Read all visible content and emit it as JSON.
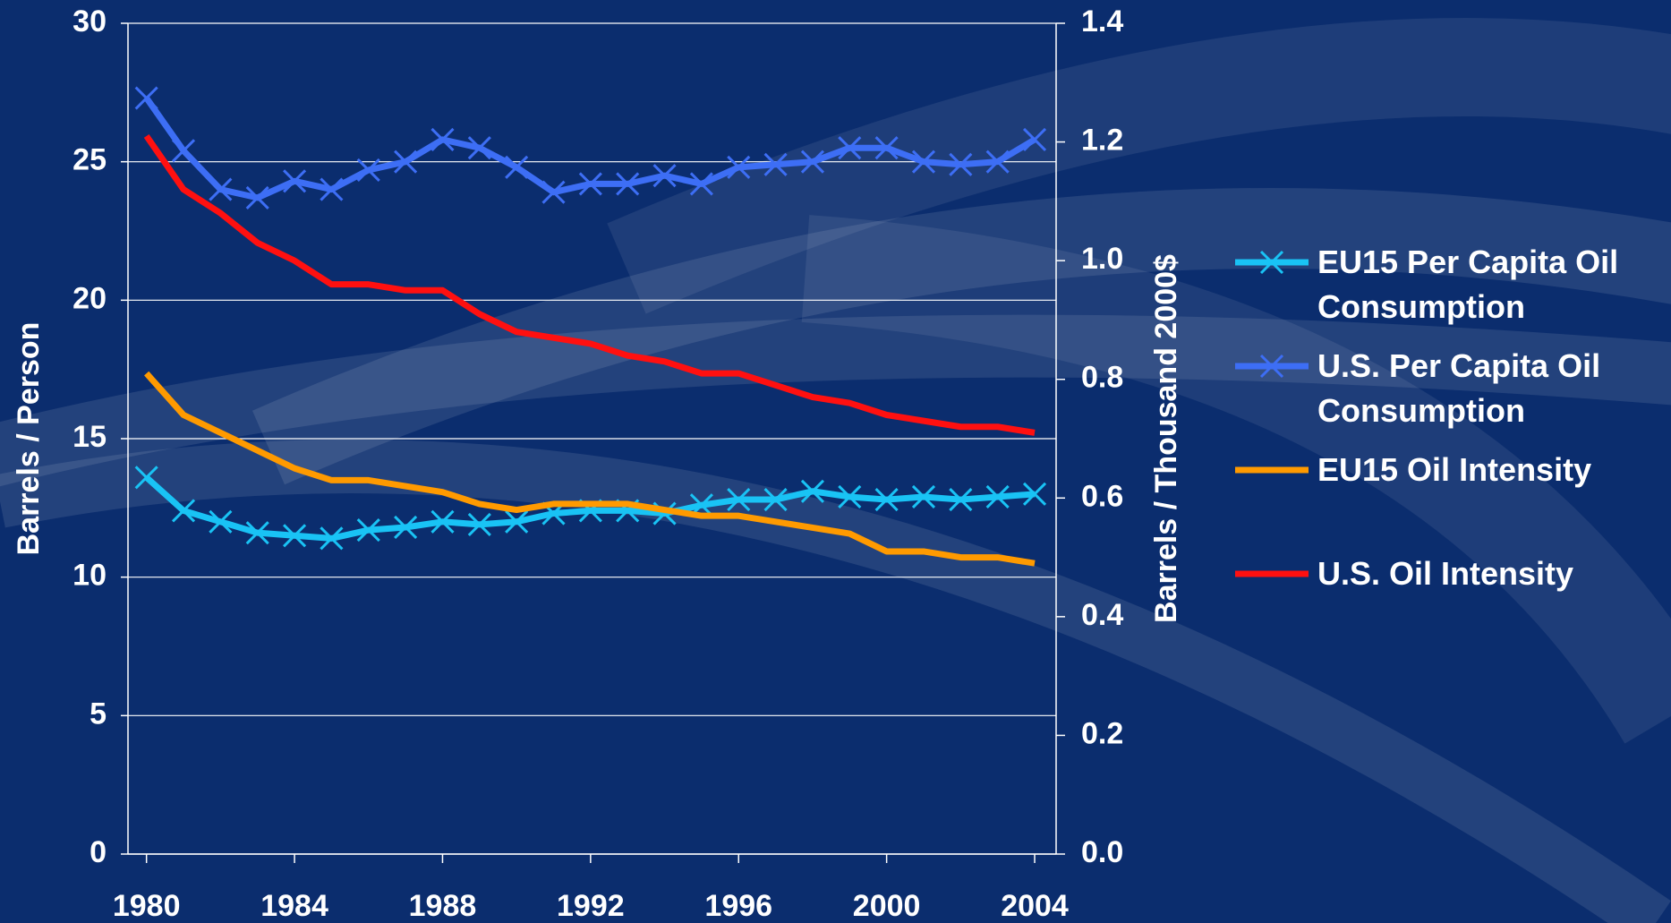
{
  "chart_data": {
    "type": "line",
    "y_label": "Barrels / Person",
    "y2_label": "Barrels / Thousand 2000$",
    "x": [
      1980,
      1981,
      1982,
      1983,
      1984,
      1985,
      1986,
      1987,
      1988,
      1989,
      1990,
      1991,
      1992,
      1993,
      1994,
      1995,
      1996,
      1997,
      1998,
      1999,
      2000,
      2001,
      2002,
      2003,
      2004
    ],
    "xlim": [
      1979.5,
      2004.58
    ],
    "xticks": [
      1980,
      1984,
      1988,
      1992,
      1996,
      2000,
      2004
    ],
    "ylim": [
      0,
      30
    ],
    "yticks": [
      0,
      5,
      10,
      15,
      20,
      25,
      30
    ],
    "y2lim": [
      0,
      1.4
    ],
    "y2ticks": [
      {
        "value": 0,
        "label": "0.0"
      },
      0.2,
      0.4,
      0.6,
      0.8,
      {
        "value": 1,
        "label": "1.0"
      },
      1.2,
      1.4
    ],
    "grid": true,
    "legend": "right",
    "series": [
      {
        "name": "EU15 Per Capita Oil Consumption",
        "color": "#19c3f5",
        "marker": "x",
        "values": [
          13.6,
          12.4,
          12.0,
          11.6,
          11.5,
          11.4,
          11.7,
          11.8,
          12.0,
          11.9,
          12.0,
          12.3,
          12.4,
          12.4,
          12.3,
          12.6,
          12.8,
          12.8,
          13.1,
          12.9,
          12.8,
          12.9,
          12.8,
          12.9,
          13.0
        ]
      },
      {
        "name": "U.S. Per Capita Oil Consumption",
        "color": "#3d6ef5",
        "marker": "x",
        "values": [
          27.3,
          25.4,
          24.0,
          23.7,
          24.3,
          24.0,
          24.7,
          25.0,
          25.8,
          25.5,
          24.8,
          23.9,
          24.2,
          24.2,
          24.5,
          24.2,
          24.8,
          24.9,
          25.0,
          25.5,
          25.5,
          25.0,
          24.9,
          25.0,
          25.8
        ]
      },
      {
        "name": "EU15 Oil Intensity",
        "color": "#ff9a00",
        "axis": "y2",
        "values": [
          0.81,
          0.74,
          0.71,
          0.68,
          0.65,
          0.63,
          0.63,
          0.62,
          0.61,
          0.59,
          0.58,
          0.59,
          0.59,
          0.59,
          0.58,
          0.57,
          0.57,
          0.56,
          0.55,
          0.54,
          0.51,
          0.51,
          0.5,
          0.5,
          0.49
        ]
      },
      {
        "name": "U.S. Oil Intensity",
        "color": "#ff1010",
        "axis": "y2",
        "values": [
          1.21,
          1.12,
          1.08,
          1.03,
          1.0,
          0.96,
          0.96,
          0.95,
          0.95,
          0.91,
          0.88,
          0.87,
          0.86,
          0.84,
          0.83,
          0.81,
          0.81,
          0.79,
          0.77,
          0.76,
          0.74,
          0.73,
          0.72,
          0.72,
          0.71
        ]
      }
    ]
  }
}
